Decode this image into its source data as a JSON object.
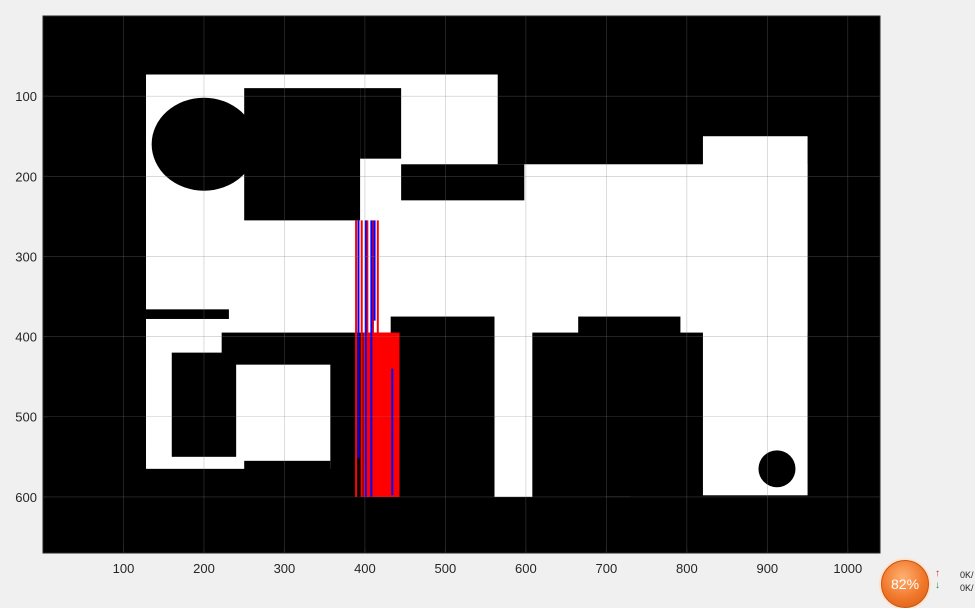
{
  "chart_data": {
    "type": "image",
    "title": "",
    "xlabel": "",
    "ylabel": "",
    "xlim": [
      0,
      1040
    ],
    "ylim": [
      670,
      0
    ],
    "y_axis_reversed": true,
    "grid": true,
    "xticks": [
      100,
      200,
      300,
      400,
      500,
      600,
      700,
      800,
      900,
      1000
    ],
    "xtick_labels": [
      "100",
      "200",
      "300",
      "400",
      "500",
      "600",
      "700",
      "800",
      "900",
      "1000"
    ],
    "yticks": [
      100,
      200,
      300,
      400,
      500,
      600
    ],
    "ytick_labels": [
      "100",
      "200",
      "300",
      "400",
      "500",
      "600"
    ],
    "background_color": "#000000",
    "free_space_color": "#ffffff",
    "free_regions": [
      {
        "x": [
          128,
          565
        ],
        "y": [
          73,
          250
        ]
      },
      {
        "x": [
          128,
          950
        ],
        "y": [
          185,
          395
        ]
      },
      {
        "x": [
          128,
          222
        ],
        "y": [
          390,
          548
        ]
      },
      {
        "x": [
          128,
          357
        ],
        "y": [
          435,
          565
        ]
      },
      {
        "x": [
          560,
          608
        ],
        "y": [
          360,
          600
        ]
      },
      {
        "x": [
          700,
          730
        ],
        "y": [
          360,
          600
        ]
      },
      {
        "x": [
          820,
          950
        ],
        "y": [
          150,
          598
        ]
      }
    ],
    "obstacles": [
      {
        "shape": "ellipse",
        "cx": 200,
        "cy": 160,
        "rx": 65,
        "ry": 58
      },
      {
        "shape": "rect",
        "x": [
          250,
          394
        ],
        "y": [
          90,
          255
        ]
      },
      {
        "shape": "rect",
        "x": [
          394,
          445
        ],
        "y": [
          90,
          178
        ]
      },
      {
        "shape": "rect",
        "x": [
          445,
          598
        ],
        "y": [
          185,
          230
        ]
      },
      {
        "shape": "rect",
        "x": [
          125,
          231
        ],
        "y": [
          366,
          378
        ]
      },
      {
        "shape": "rect",
        "x": [
          160,
          240
        ],
        "y": [
          420,
          550
        ]
      },
      {
        "shape": "rect",
        "x": [
          250,
          357
        ],
        "y": [
          555,
          600
        ]
      },
      {
        "shape": "rect",
        "x": [
          418,
          432
        ],
        "y": [
          395,
          456
        ]
      },
      {
        "shape": "rect",
        "x": [
          432,
          561
        ],
        "y": [
          375,
          600
        ]
      },
      {
        "shape": "rect",
        "x": [
          665,
          792
        ],
        "y": [
          375,
          600
        ]
      },
      {
        "shape": "ellipse",
        "cx": 912,
        "cy": 565,
        "rx": 23,
        "ry": 23
      }
    ],
    "series": [
      {
        "color": "#0000ff",
        "segments": [
          {
            "x": 392,
            "y": [
              255,
              552
            ]
          },
          {
            "x": 401,
            "y": [
              255,
              600
            ]
          },
          {
            "x": 408,
            "y": [
              255,
              600
            ]
          },
          {
            "x": 412,
            "y": [
              255,
              380
            ]
          },
          {
            "x": 434,
            "y": [
              440,
              598
            ]
          }
        ]
      },
      {
        "color": "#ff0000",
        "segments": [
          {
            "x": 389,
            "y": [
              255,
              600
            ]
          },
          {
            "x": 396,
            "y": [
              255,
              600
            ]
          },
          {
            "x": 403,
            "y": [
              255,
              600
            ]
          },
          {
            "x": 410,
            "y": [
              255,
              600
            ]
          },
          {
            "x": 416,
            "y": [
              255,
              600
            ]
          },
          {
            "x": 423,
            "y": [
              395,
              600
            ]
          },
          {
            "x": 429,
            "y": [
              395,
              600
            ]
          }
        ],
        "region": {
          "x": [
            398,
            443
          ],
          "y": [
            395,
            600
          ]
        }
      }
    ]
  },
  "network_monitor": {
    "percent": "82%",
    "upload_rate": "0K/",
    "download_rate": "0K/",
    "up_color": "#e0201a",
    "down_color": "#1a8c1a"
  }
}
